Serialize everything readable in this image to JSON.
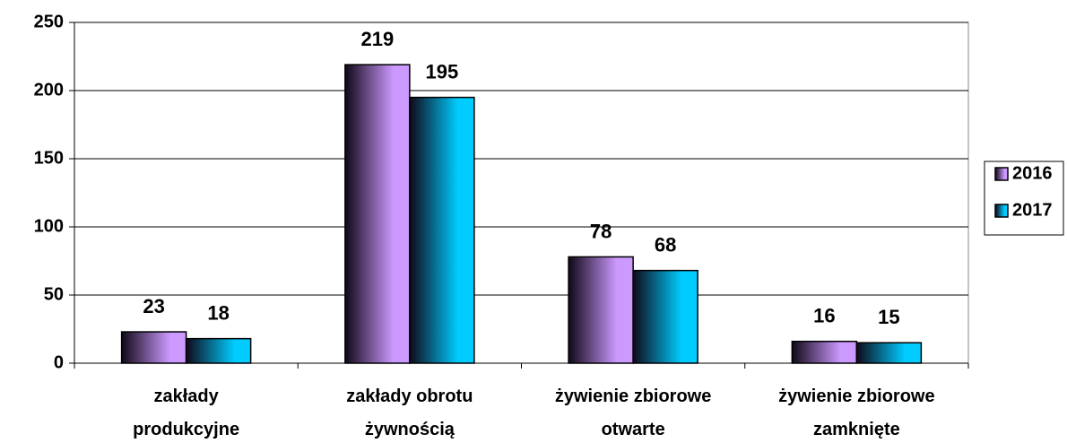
{
  "chart_data": {
    "type": "bar",
    "categories": [
      "zakłady produkcyjne",
      "zakłady obrotu żywnością",
      "żywienie zbiorowe otwarte",
      "żywienie zbiorowe zamknięte"
    ],
    "series": [
      {
        "name": "2016",
        "color": "#cc99ff",
        "values": [
          23,
          219,
          78,
          16
        ]
      },
      {
        "name": "2017",
        "color": "#00ccff",
        "values": [
          18,
          195,
          68,
          15
        ]
      }
    ],
    "ylim": [
      0,
      250
    ],
    "yticks": [
      0,
      50,
      100,
      150,
      200,
      250
    ],
    "grid": true,
    "legend": "right"
  }
}
